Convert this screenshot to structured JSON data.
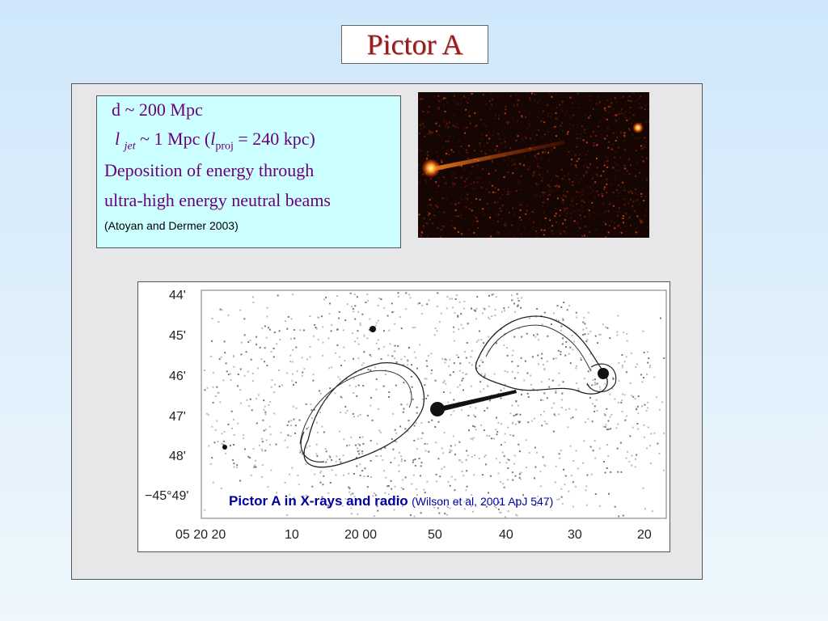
{
  "slide": {
    "title": "Pictor A",
    "info": {
      "line1": "d ~ 200 Mpc",
      "l_symbol": "l",
      "jet_sub": "jet",
      "mid1": " ~ 1 Mpc   (",
      "proj_symbol": "l",
      "proj_sub": "proj",
      "mid2": " = 240 kpc)",
      "line3": "Deposition of energy through",
      "line4": "ultra-high energy neutral beams",
      "citation": "(Atoyan and Dermer 2003)"
    },
    "radio_figure": {
      "caption_bold": "Pictor A in X-rays and radio",
      "caption_ref": "(Wilson et al, 2001 ApJ 547)",
      "y_ticks": [
        "44'",
        "45'",
        "46'",
        "47'",
        "48'",
        "−45°49'"
      ],
      "x_ticks": [
        "05 20 20",
        "10",
        "20 00",
        "50",
        "40",
        "30",
        "20"
      ]
    },
    "colors": {
      "title": "#9b1a1a",
      "info_text": "#6a007a",
      "info_bg": "#ccffff",
      "caption": "#0000a0"
    }
  }
}
